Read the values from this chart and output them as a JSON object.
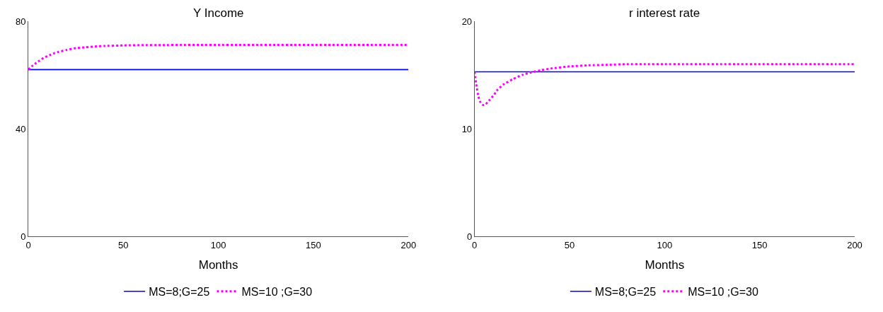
{
  "chart_data": [
    {
      "type": "line",
      "title": "Y Income",
      "xlabel": "Months",
      "xlim": [
        0,
        200
      ],
      "xticks": [
        0,
        50,
        100,
        150,
        200
      ],
      "ylim": [
        0,
        80
      ],
      "yticks": [
        0,
        40,
        80
      ],
      "legend": "bottom",
      "series": [
        {
          "name": "MS=8;G=25",
          "color": "#0000ff",
          "marker": "none",
          "x": [
            0,
            200
          ],
          "values": [
            62,
            62
          ]
        },
        {
          "name": "MS=10 ;G=30",
          "color": "#ff00ff",
          "marker": "none",
          "line_style": "dotted",
          "x": [
            0,
            2,
            4,
            6,
            8,
            10,
            12,
            14,
            16,
            20,
            25,
            30,
            35,
            40,
            50,
            60,
            70,
            80,
            90,
            100,
            110,
            120,
            130,
            140,
            150,
            160,
            170,
            180,
            190,
            200
          ],
          "values": [
            62,
            63.3,
            64.4,
            65.4,
            66.3,
            67.0,
            67.6,
            68.2,
            68.6,
            69.3,
            70.0,
            70.3,
            70.6,
            70.8,
            71.0,
            71.1,
            71.1,
            71.2,
            71.2,
            71.2,
            71.2,
            71.2,
            71.2,
            71.2,
            71.2,
            71.2,
            71.2,
            71.2,
            71.2,
            71.2
          ]
        }
      ]
    },
    {
      "type": "line",
      "title": "r interest rate",
      "xlabel": "Months",
      "xlim": [
        0,
        200
      ],
      "xticks": [
        0,
        50,
        100,
        150,
        200
      ],
      "ylim": [
        0,
        20
      ],
      "yticks": [
        0,
        10,
        20
      ],
      "legend": "bottom",
      "series": [
        {
          "name": "MS=8;G=25",
          "color": "#0000ff",
          "marker": "none",
          "x": [
            0,
            200
          ],
          "values": [
            15.3,
            15.3
          ]
        },
        {
          "name": "MS=10 ;G=30",
          "color": "#ff00ff",
          "marker": "none",
          "line_style": "dotted",
          "x": [
            0,
            1,
            2,
            3,
            4,
            5,
            6,
            8,
            10,
            12,
            15,
            20,
            25,
            30,
            35,
            40,
            50,
            60,
            70,
            80,
            90,
            100,
            110,
            120,
            130,
            140,
            150,
            160,
            170,
            180,
            190,
            200
          ],
          "values": [
            15.3,
            14.0,
            13.0,
            12.5,
            12.25,
            12.2,
            12.3,
            12.7,
            13.1,
            13.6,
            14.1,
            14.6,
            15.0,
            15.25,
            15.45,
            15.6,
            15.8,
            15.9,
            15.95,
            16,
            16,
            16,
            16,
            16,
            16,
            16,
            16,
            16,
            16,
            16,
            16,
            16
          ]
        }
      ]
    }
  ]
}
